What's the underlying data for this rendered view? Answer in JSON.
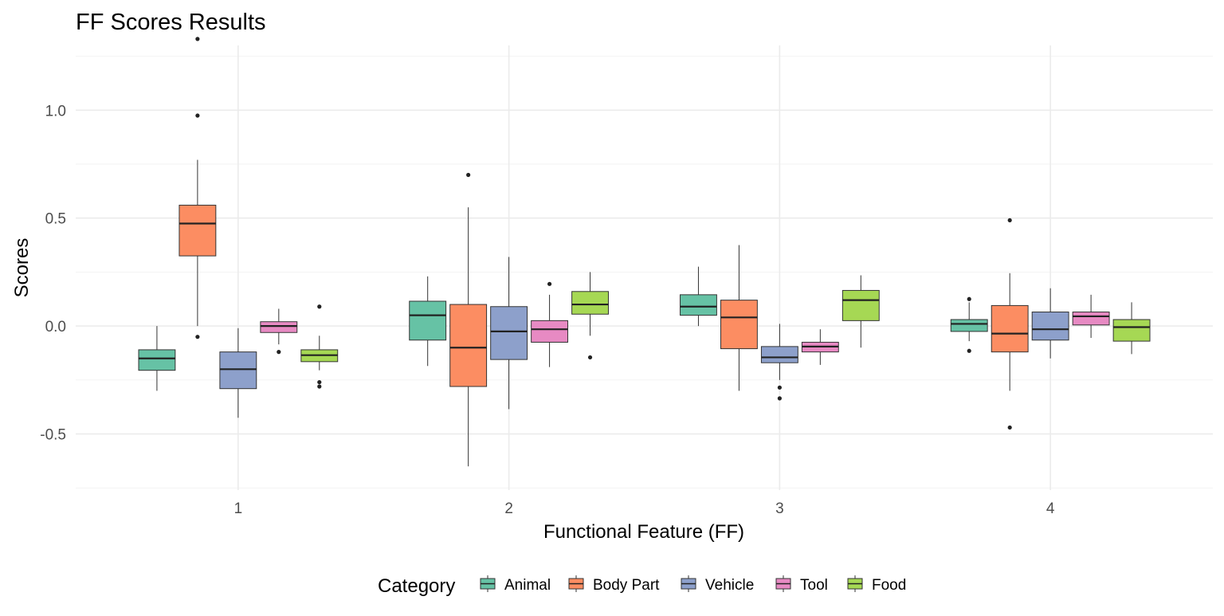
{
  "chart_data": {
    "type": "boxplot",
    "title": "FF Scores Results",
    "xlabel": "Functional Feature (FF)",
    "ylabel": "Scores",
    "categories": [
      "1",
      "2",
      "3",
      "4"
    ],
    "ylim": [
      -0.76,
      1.3
    ],
    "yticks": [
      -0.5,
      0.0,
      0.5,
      1.0
    ],
    "ytick_labels": [
      "-0.5",
      "0.0",
      "0.5",
      "1.0"
    ],
    "grid": true,
    "legend": {
      "title": "Category",
      "position": "bottom"
    },
    "series": [
      {
        "name": "Animal",
        "color": "#66c2a5",
        "boxes": [
          {
            "whisker_low": -0.3,
            "q1": -0.205,
            "median": -0.15,
            "q3": -0.11,
            "whisker_high": 0.0,
            "outliers": []
          },
          {
            "whisker_low": -0.185,
            "q1": -0.065,
            "median": 0.05,
            "q3": 0.115,
            "whisker_high": 0.23,
            "outliers": []
          },
          {
            "whisker_low": 0.0,
            "q1": 0.05,
            "median": 0.09,
            "q3": 0.145,
            "whisker_high": 0.275,
            "outliers": []
          },
          {
            "whisker_low": -0.07,
            "q1": -0.025,
            "median": 0.01,
            "q3": 0.03,
            "whisker_high": 0.11,
            "outliers": [
              0.125,
              -0.115
            ]
          }
        ]
      },
      {
        "name": "Body Part",
        "color": "#fc8d62",
        "boxes": [
          {
            "whisker_low": 0.0,
            "q1": 0.325,
            "median": 0.475,
            "q3": 0.56,
            "whisker_high": 0.77,
            "outliers": [
              1.33,
              0.975,
              -0.05
            ]
          },
          {
            "whisker_low": -0.65,
            "q1": -0.28,
            "median": -0.1,
            "q3": 0.1,
            "whisker_high": 0.55,
            "outliers": [
              0.7
            ]
          },
          {
            "whisker_low": -0.3,
            "q1": -0.105,
            "median": 0.04,
            "q3": 0.12,
            "whisker_high": 0.375,
            "outliers": []
          },
          {
            "whisker_low": -0.3,
            "q1": -0.12,
            "median": -0.035,
            "q3": 0.095,
            "whisker_high": 0.245,
            "outliers": [
              0.49,
              -0.47
            ]
          }
        ]
      },
      {
        "name": "Vehicle",
        "color": "#8da0cb",
        "boxes": [
          {
            "whisker_low": -0.425,
            "q1": -0.29,
            "median": -0.2,
            "q3": -0.12,
            "whisker_high": -0.01,
            "outliers": []
          },
          {
            "whisker_low": -0.385,
            "q1": -0.155,
            "median": -0.025,
            "q3": 0.09,
            "whisker_high": 0.32,
            "outliers": []
          },
          {
            "whisker_low": -0.25,
            "q1": -0.17,
            "median": -0.145,
            "q3": -0.095,
            "whisker_high": 0.01,
            "outliers": [
              -0.285,
              -0.335
            ]
          },
          {
            "whisker_low": -0.15,
            "q1": -0.065,
            "median": -0.015,
            "q3": 0.065,
            "whisker_high": 0.175,
            "outliers": []
          }
        ]
      },
      {
        "name": "Tool",
        "color": "#e78ac3",
        "boxes": [
          {
            "whisker_low": -0.085,
            "q1": -0.03,
            "median": 0.0,
            "q3": 0.02,
            "whisker_high": 0.08,
            "outliers": [
              -0.12
            ]
          },
          {
            "whisker_low": -0.19,
            "q1": -0.075,
            "median": -0.015,
            "q3": 0.025,
            "whisker_high": 0.145,
            "outliers": [
              0.195
            ]
          },
          {
            "whisker_low": -0.18,
            "q1": -0.12,
            "median": -0.095,
            "q3": -0.075,
            "whisker_high": -0.015,
            "outliers": []
          },
          {
            "whisker_low": -0.055,
            "q1": 0.005,
            "median": 0.045,
            "q3": 0.065,
            "whisker_high": 0.145,
            "outliers": []
          }
        ]
      },
      {
        "name": "Food",
        "color": "#a6d854",
        "boxes": [
          {
            "whisker_low": -0.205,
            "q1": -0.165,
            "median": -0.135,
            "q3": -0.11,
            "whisker_high": -0.045,
            "outliers": [
              0.09,
              -0.26,
              -0.28
            ]
          },
          {
            "whisker_low": -0.045,
            "q1": 0.055,
            "median": 0.1,
            "q3": 0.16,
            "whisker_high": 0.25,
            "outliers": [
              -0.145
            ]
          },
          {
            "whisker_low": -0.1,
            "q1": 0.025,
            "median": 0.12,
            "q3": 0.165,
            "whisker_high": 0.235,
            "outliers": []
          },
          {
            "whisker_low": -0.13,
            "q1": -0.07,
            "median": -0.005,
            "q3": 0.03,
            "whisker_high": 0.11,
            "outliers": []
          }
        ]
      }
    ]
  }
}
